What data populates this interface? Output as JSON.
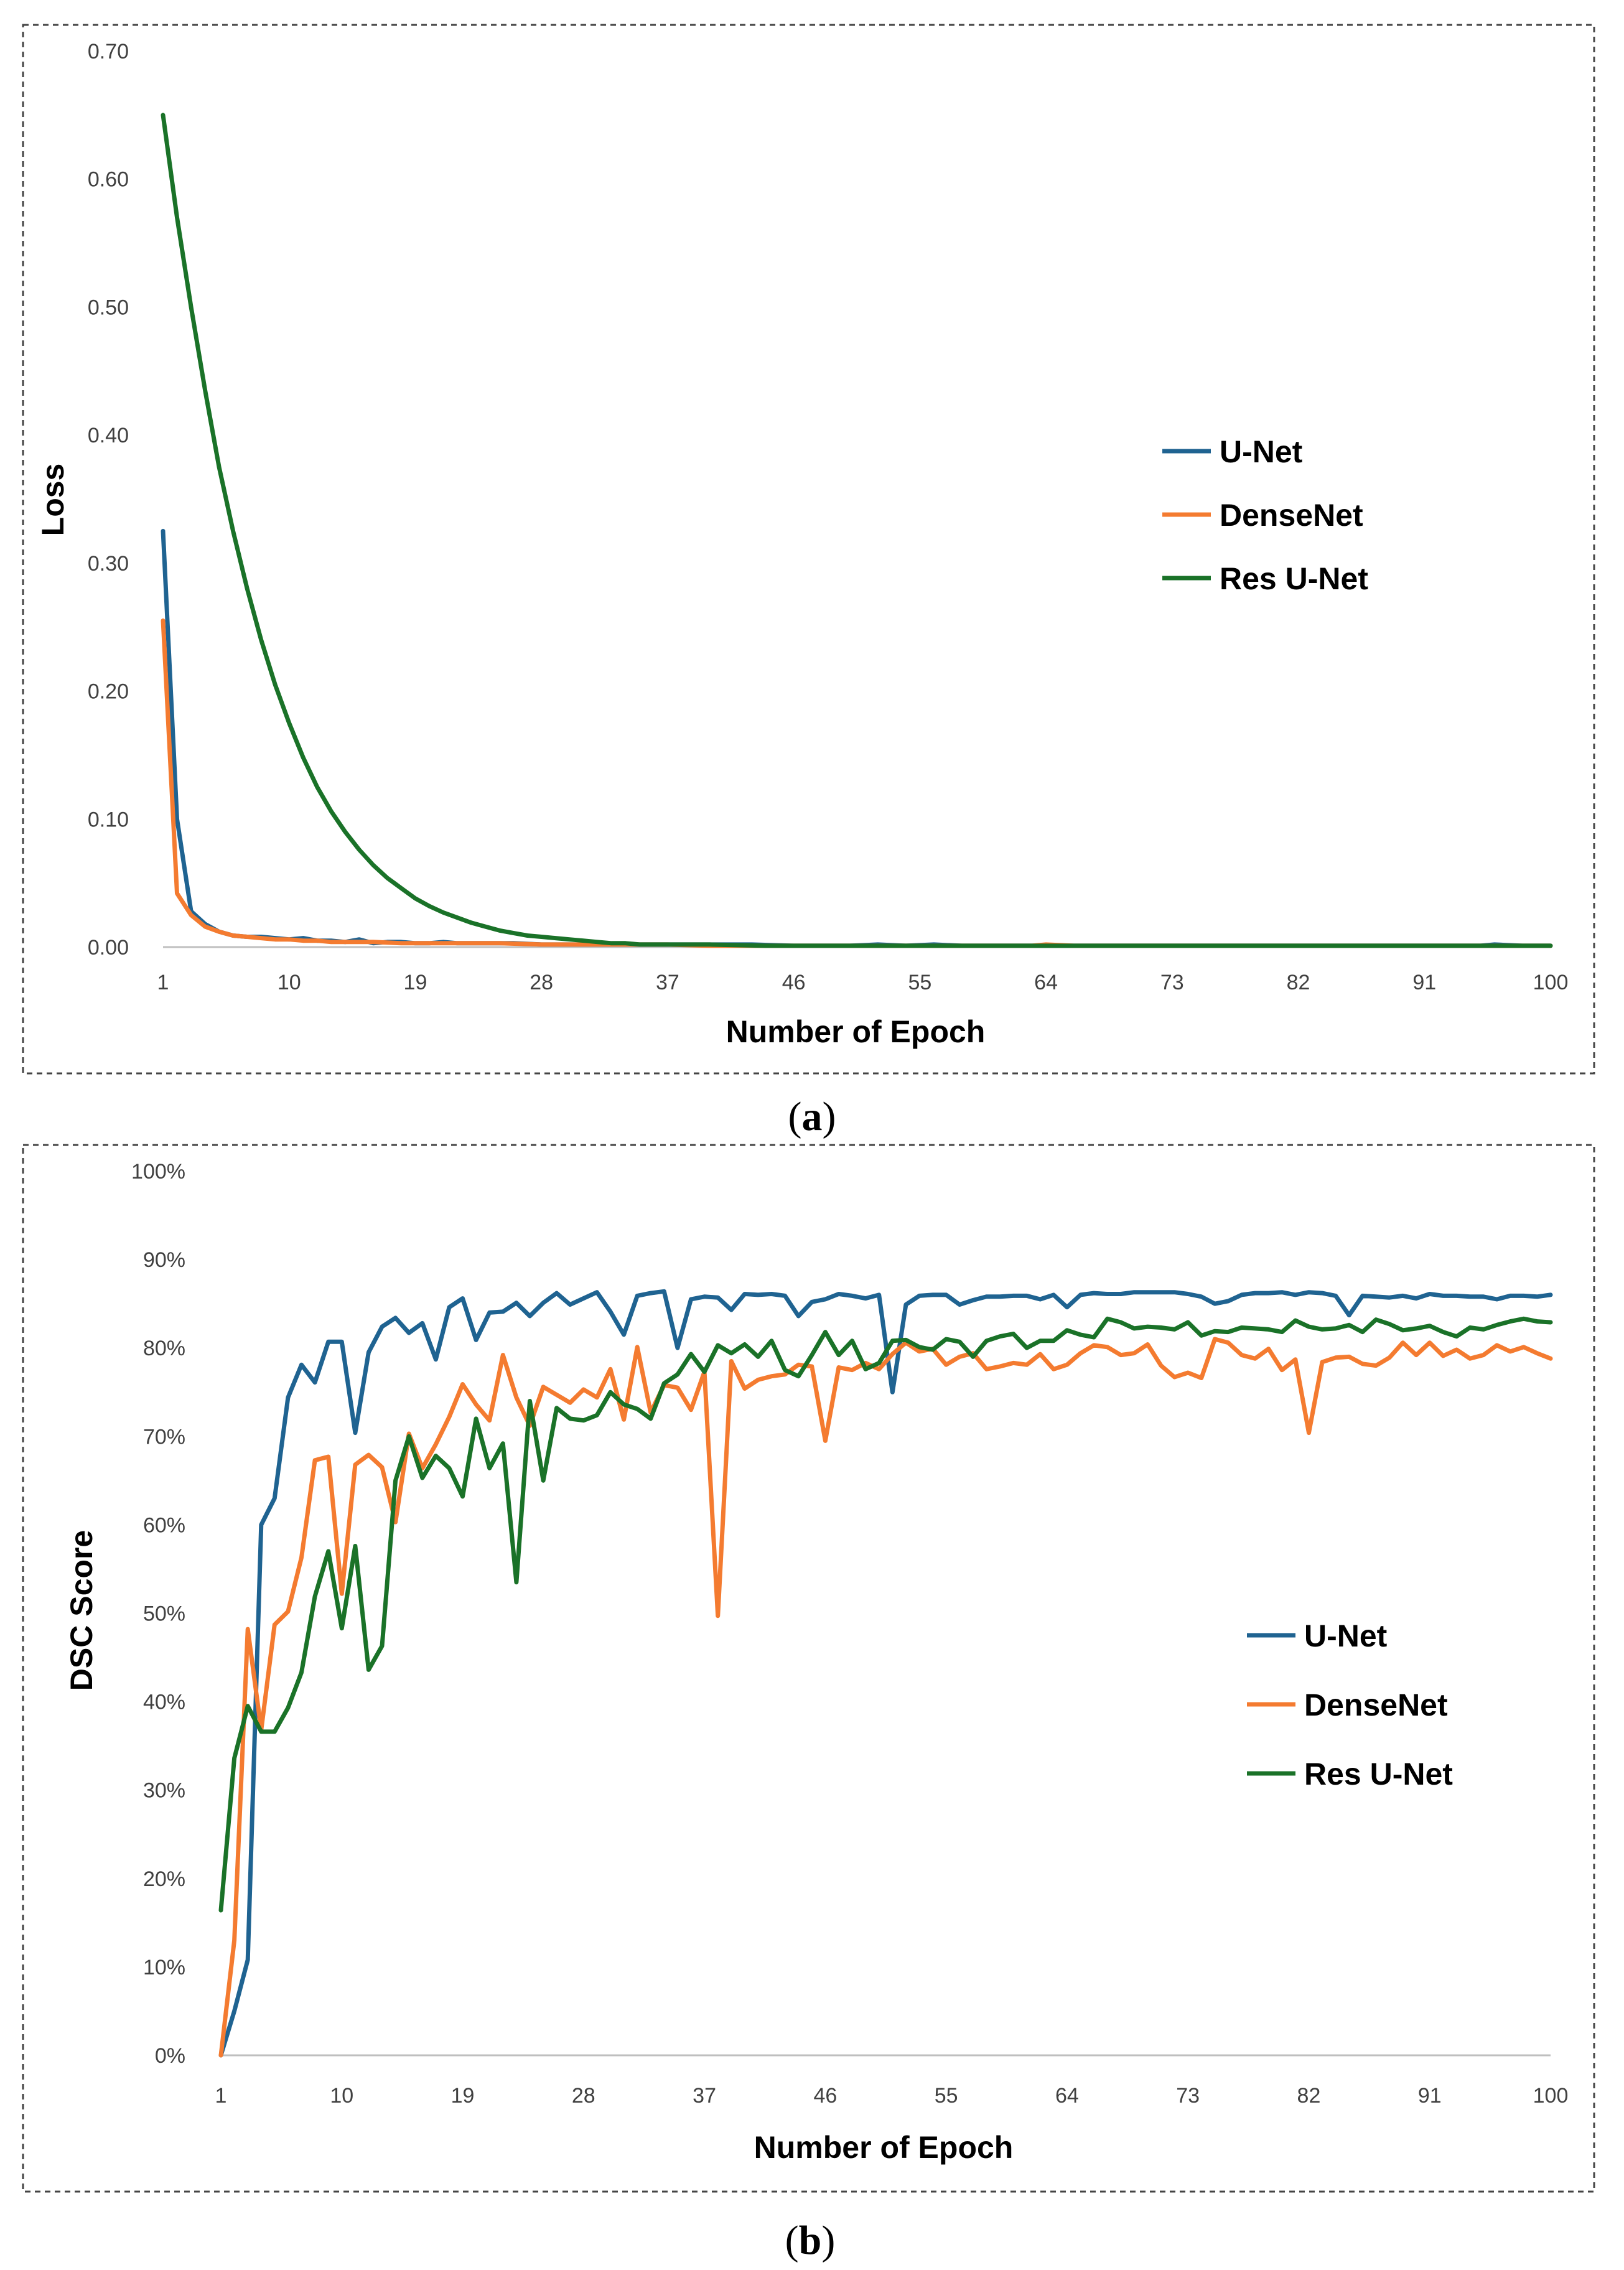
{
  "colors": {
    "unet": "#1f6391",
    "densenet": "#f47b30",
    "resunet": "#1a7228",
    "axis": "#bfbfbf",
    "tick_text": "#404040"
  },
  "chart_data": [
    {
      "panel": "a",
      "type": "line",
      "title": "",
      "caption_open": "(",
      "caption_letter": "a",
      "caption_close": ")",
      "xlabel": "Number of Epoch",
      "ylabel": "Loss",
      "xlim": [
        1,
        100
      ],
      "ylim": [
        0,
        0.7
      ],
      "x_ticks": [
        "1",
        "10",
        "19",
        "28",
        "37",
        "46",
        "55",
        "64",
        "73",
        "82",
        "91",
        "100"
      ],
      "y_ticks": [
        "0.00",
        "0.10",
        "0.20",
        "0.30",
        "0.40",
        "0.50",
        "0.60",
        "0.70"
      ],
      "legend_position": "right",
      "series": [
        {
          "name": "U-Net",
          "color_key": "unet",
          "points": [
            [
              1,
              0.325
            ],
            [
              2,
              0.1
            ],
            [
              3,
              0.028
            ],
            [
              4,
              0.018
            ],
            [
              5,
              0.012
            ],
            [
              6,
              0.009
            ],
            [
              7,
              0.008
            ],
            [
              8,
              0.008
            ],
            [
              9,
              0.007
            ],
            [
              10,
              0.006
            ],
            [
              11,
              0.007
            ],
            [
              12,
              0.005
            ],
            [
              13,
              0.005
            ],
            [
              14,
              0.004
            ],
            [
              15,
              0.006
            ],
            [
              16,
              0.003
            ],
            [
              17,
              0.004
            ],
            [
              18,
              0.004
            ],
            [
              19,
              0.003
            ],
            [
              20,
              0.003
            ],
            [
              21,
              0.004
            ],
            [
              22,
              0.003
            ],
            [
              24,
              0.003
            ],
            [
              26,
              0.003
            ],
            [
              28,
              0.002
            ],
            [
              30,
              0.002
            ],
            [
              33,
              0.002
            ],
            [
              36,
              0.002
            ],
            [
              40,
              0.002
            ],
            [
              43,
              0.002
            ],
            [
              46,
              0.001
            ],
            [
              50,
              0.001
            ],
            [
              52,
              0.002
            ],
            [
              54,
              0.001
            ],
            [
              56,
              0.002
            ],
            [
              58,
              0.001
            ],
            [
              62,
              0.001
            ],
            [
              66,
              0.001
            ],
            [
              70,
              0.001
            ],
            [
              75,
              0.001
            ],
            [
              80,
              0.001
            ],
            [
              85,
              0.001
            ],
            [
              90,
              0.001
            ],
            [
              95,
              0.001
            ],
            [
              96,
              0.002
            ],
            [
              98,
              0.001
            ],
            [
              100,
              0.001
            ]
          ]
        },
        {
          "name": "DenseNet",
          "color_key": "densenet",
          "points": [
            [
              1,
              0.255
            ],
            [
              2,
              0.042
            ],
            [
              3,
              0.025
            ],
            [
              4,
              0.016
            ],
            [
              5,
              0.012
            ],
            [
              6,
              0.009
            ],
            [
              7,
              0.008
            ],
            [
              8,
              0.007
            ],
            [
              9,
              0.006
            ],
            [
              10,
              0.006
            ],
            [
              11,
              0.005
            ],
            [
              12,
              0.005
            ],
            [
              13,
              0.004
            ],
            [
              14,
              0.004
            ],
            [
              15,
              0.004
            ],
            [
              16,
              0.004
            ],
            [
              18,
              0.003
            ],
            [
              20,
              0.003
            ],
            [
              22,
              0.003
            ],
            [
              25,
              0.003
            ],
            [
              28,
              0.002
            ],
            [
              31,
              0.002
            ],
            [
              34,
              0.002
            ],
            [
              37,
              0.002
            ],
            [
              40,
              0.001
            ],
            [
              43,
              0.001
            ],
            [
              46,
              0.001
            ],
            [
              50,
              0.001
            ],
            [
              55,
              0.001
            ],
            [
              60,
              0.001
            ],
            [
              63,
              0.001
            ],
            [
              64,
              0.002
            ],
            [
              66,
              0.001
            ],
            [
              70,
              0.001
            ],
            [
              75,
              0.001
            ],
            [
              80,
              0.001
            ],
            [
              85,
              0.001
            ],
            [
              90,
              0.001
            ],
            [
              95,
              0.001
            ],
            [
              100,
              0.001
            ]
          ]
        },
        {
          "name": "Res U-Net",
          "color_key": "resunet",
          "points": [
            [
              1,
              0.65
            ],
            [
              2,
              0.57
            ],
            [
              3,
              0.5
            ],
            [
              4,
              0.435
            ],
            [
              5,
              0.375
            ],
            [
              6,
              0.325
            ],
            [
              7,
              0.28
            ],
            [
              8,
              0.24
            ],
            [
              9,
              0.205
            ],
            [
              10,
              0.175
            ],
            [
              11,
              0.148
            ],
            [
              12,
              0.125
            ],
            [
              13,
              0.106
            ],
            [
              14,
              0.09
            ],
            [
              15,
              0.076
            ],
            [
              16,
              0.064
            ],
            [
              17,
              0.054
            ],
            [
              18,
              0.046
            ],
            [
              19,
              0.038
            ],
            [
              20,
              0.032
            ],
            [
              21,
              0.027
            ],
            [
              22,
              0.023
            ],
            [
              23,
              0.019
            ],
            [
              24,
              0.016
            ],
            [
              25,
              0.013
            ],
            [
              26,
              0.011
            ],
            [
              27,
              0.009
            ],
            [
              28,
              0.008
            ],
            [
              29,
              0.007
            ],
            [
              30,
              0.006
            ],
            [
              31,
              0.005
            ],
            [
              32,
              0.004
            ],
            [
              33,
              0.003
            ],
            [
              34,
              0.003
            ],
            [
              35,
              0.002
            ],
            [
              37,
              0.002
            ],
            [
              40,
              0.002
            ],
            [
              44,
              0.001
            ],
            [
              50,
              0.001
            ],
            [
              60,
              0.001
            ],
            [
              70,
              0.001
            ],
            [
              80,
              0.001
            ],
            [
              90,
              0.001
            ],
            [
              100,
              0.001
            ]
          ]
        }
      ]
    },
    {
      "panel": "b",
      "type": "line",
      "title": "",
      "caption_open": "(",
      "caption_letter": "b",
      "caption_close": ")",
      "xlabel": "Number of Epoch",
      "ylabel": "DSC Score",
      "xlim": [
        1,
        100
      ],
      "ylim": [
        0,
        100
      ],
      "x_ticks": [
        "1",
        "10",
        "19",
        "28",
        "37",
        "46",
        "55",
        "64",
        "73",
        "82",
        "91",
        "100"
      ],
      "y_ticks": [
        "0%",
        "10%",
        "20%",
        "30%",
        "40%",
        "50%",
        "60%",
        "70%",
        "80%",
        "90%",
        "100%"
      ],
      "legend_position": "right",
      "series": [
        {
          "name": "U-Net",
          "color_key": "unet",
          "values": [
            0,
            5,
            10.8,
            60,
            63,
            74.4,
            78.1,
            76.1,
            80.7,
            80.7,
            70.4,
            79.5,
            82.4,
            83.4,
            81.7,
            82.8,
            78.7,
            84.6,
            85.6,
            80.9,
            84,
            84.1,
            85.1,
            83.6,
            85.1,
            86.2,
            84.9,
            85.6,
            86.3,
            84.1,
            81.5,
            85.9,
            86.2,
            86.4,
            80,
            85.5,
            85.8,
            85.7,
            84.3,
            86.1,
            86,
            86.1,
            85.9,
            83.6,
            85.2,
            85.5,
            86.1,
            85.9,
            85.6,
            86,
            75,
            84.9,
            85.9,
            86,
            86,
            84.9,
            85.4,
            85.8,
            85.8,
            85.9,
            85.9,
            85.5,
            86,
            84.6,
            86,
            86.2,
            86.1,
            86.1,
            86.3,
            86.3,
            86.3,
            86.3,
            86.1,
            85.8,
            85,
            85.3,
            86,
            86.2,
            86.2,
            86.3,
            86,
            86.3,
            86.2,
            85.9,
            83.7,
            85.9,
            85.8,
            85.7,
            85.9,
            85.6,
            86.1,
            85.9,
            85.9,
            85.8,
            85.8,
            85.5,
            85.9,
            85.9,
            85.8,
            86
          ]
        },
        {
          "name": "DenseNet",
          "color_key": "densenet",
          "values": [
            0,
            13,
            48.2,
            36.8,
            48.7,
            50.2,
            56.3,
            67.3,
            67.7,
            52.2,
            66.8,
            67.9,
            66.5,
            60.3,
            70.3,
            66.4,
            69.1,
            72.2,
            75.9,
            73.6,
            71.8,
            79.2,
            74.4,
            71.2,
            75.6,
            74.7,
            73.8,
            75.3,
            74.4,
            77.6,
            71.9,
            80.1,
            72.7,
            75.8,
            75.5,
            73,
            77.3,
            49.7,
            78.5,
            75.4,
            76.4,
            76.8,
            77,
            78.1,
            77.9,
            69.5,
            77.8,
            77.5,
            78.3,
            77.6,
            79.3,
            80.6,
            79.6,
            79.9,
            78.1,
            79,
            79.4,
            77.6,
            77.9,
            78.3,
            78.1,
            79.3,
            77.6,
            78.1,
            79.4,
            80.3,
            80.1,
            79.2,
            79.4,
            80.4,
            78,
            76.7,
            77.2,
            76.6,
            81,
            80.6,
            79.2,
            78.8,
            79.9,
            77.5,
            78.7,
            70.4,
            78.4,
            78.9,
            79,
            78.2,
            78,
            78.9,
            80.6,
            79.2,
            80.6,
            79.1,
            79.8,
            78.8,
            79.2,
            80.3,
            79.6,
            80.1,
            79.4,
            78.8
          ]
        },
        {
          "name": "Res U-Net",
          "color_key": "resunet",
          "values": [
            16.4,
            33.6,
            39.5,
            36.6,
            36.6,
            39.3,
            43.3,
            51.9,
            57,
            48.3,
            57.6,
            43.6,
            46.3,
            65,
            70,
            65.3,
            67.8,
            66.4,
            63.2,
            72,
            66.4,
            69.2,
            53.5,
            74,
            65,
            73.2,
            72,
            71.8,
            72.4,
            75,
            73.6,
            73.1,
            72,
            76,
            77,
            79.3,
            77.3,
            80.3,
            79.4,
            80.4,
            79,
            80.8,
            77.5,
            76.8,
            79.2,
            81.8,
            79.2,
            80.8,
            77.6,
            78.3,
            80.8,
            80.9,
            80.1,
            79.8,
            81,
            80.7,
            79,
            80.8,
            81.3,
            81.6,
            80,
            80.8,
            80.8,
            82,
            81.5,
            81.2,
            83.3,
            82.9,
            82.2,
            82.4,
            82.3,
            82.1,
            82.9,
            81.4,
            81.9,
            81.8,
            82.3,
            82.2,
            82.1,
            81.8,
            83.1,
            82.4,
            82.1,
            82.2,
            82.6,
            81.8,
            83.2,
            82.7,
            82,
            82.2,
            82.5,
            81.8,
            81.3,
            82.3,
            82.1,
            82.6,
            83,
            83.3,
            83,
            82.9
          ]
        }
      ]
    }
  ]
}
